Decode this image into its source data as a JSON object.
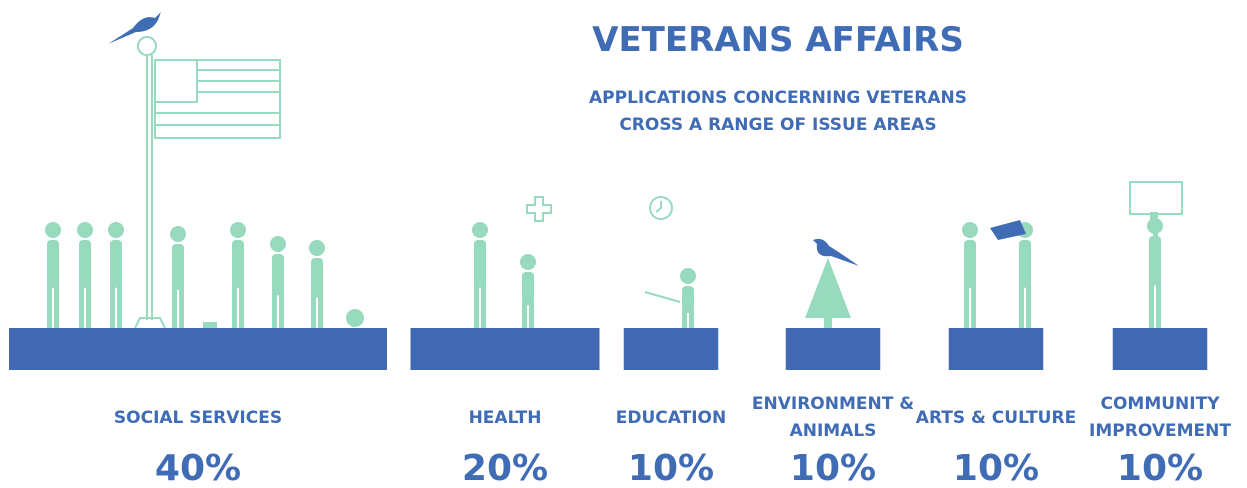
{
  "chart_data": {
    "type": "bar",
    "title": "VETERANS AFFAIRS",
    "subtitle": [
      "APPLICATIONS CONCERNING VETERANS",
      "CROSS A RANGE OF ISSUE AREAS"
    ],
    "categories": [
      "SOCIAL SERVICES",
      "HEALTH",
      "EDUCATION",
      "ENVIRONMENT & ANIMALS",
      "ARTS & CULTURE",
      "COMMUNITY IMPROVEMENT"
    ],
    "values": [
      40,
      20,
      10,
      10,
      10,
      10
    ],
    "value_labels": [
      "40%",
      "20%",
      "10%",
      "10%",
      "10%",
      "10%"
    ],
    "color": "#4169b2"
  }
}
